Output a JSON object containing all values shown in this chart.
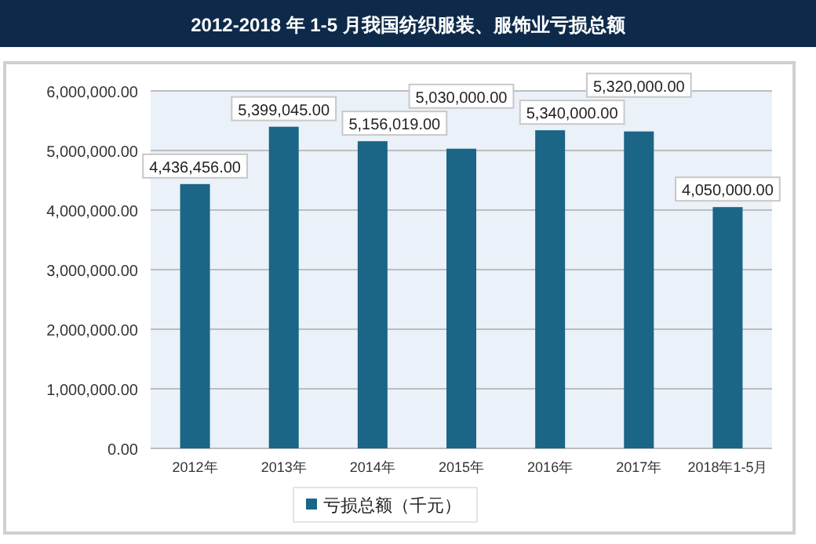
{
  "chart_data": {
    "type": "bar",
    "title": "2012-2018 年 1-5 月我国纺织服装、服饰业亏损总额",
    "categories": [
      "2012年",
      "2013年",
      "2014年",
      "2015年",
      "2016年",
      "2017年",
      "2018年1-5月"
    ],
    "series": [
      {
        "name": "亏损总额（千元）",
        "color": "#1b6587",
        "values": [
          4436456,
          5399045,
          5156019,
          5030000,
          5340000,
          5320000,
          4050000
        ]
      }
    ],
    "ylim": [
      0,
      6000000
    ],
    "yticks": [
      {
        "value": 0,
        "label": "0.00"
      },
      {
        "value": 1000000,
        "label": "1,000,000.00"
      },
      {
        "value": 2000000,
        "label": "2,000,000.00"
      },
      {
        "value": 3000000,
        "label": "3,000,000.00"
      },
      {
        "value": 4000000,
        "label": "4,000,000.00"
      },
      {
        "value": 5000000,
        "label": "5,000,000.00"
      },
      {
        "value": 6000000,
        "label": "6,000,000.00"
      }
    ],
    "value_labels": [
      "4,436,456.00",
      "5,399,045.00",
      "5,156,019.00",
      "5,030,000.00",
      "5,340,000.00",
      "5,320,000.00",
      "4,050,000.00"
    ],
    "grid": "y",
    "legend": "bottom"
  }
}
